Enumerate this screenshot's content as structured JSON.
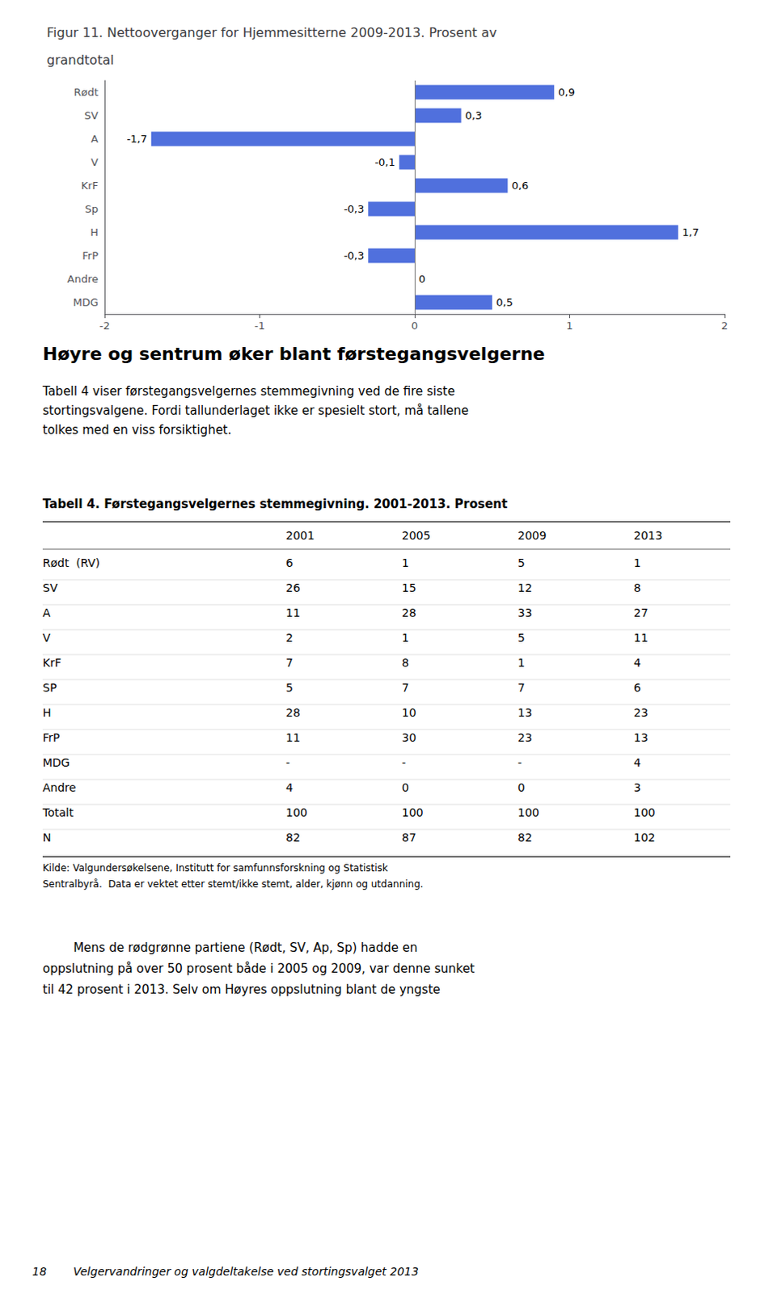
{
  "chart_data": {
    "type": "bar",
    "orientation": "horizontal",
    "title": "Figur 11. Nettooverganger for Hjemmesitterne 2009-2013. Prosent av\ngrandtotal",
    "categories": [
      "Rødt",
      "SV",
      "A",
      "V",
      "KrF",
      "Sp",
      "H",
      "FrP",
      "Andre",
      "MDG"
    ],
    "values": [
      0.9,
      0.3,
      -1.7,
      -0.1,
      0.6,
      -0.3,
      1.7,
      -0.3,
      0.0,
      0.5
    ],
    "value_labels": [
      "0,9",
      "0,3",
      "-1,7",
      "-0,1",
      "0,6",
      "-0,3",
      "1,7",
      "-0,3",
      "0",
      "0,5"
    ],
    "data_labels": true,
    "xlim": [
      -2,
      2
    ],
    "xticks": [
      -2,
      -1,
      0,
      1,
      2
    ],
    "grid": false,
    "annotations": [
      "Høyre og sentrum øker blant førstegangsvelgerne",
      "Tabell 4 viser førstegangsvelgernes stemmegivning ved de fire siste",
      "stortingsvalgene. Fordi tallunderlaget ikke er spesielt stort, må tallene",
      "tolkes med en viss forsiktighet.",
      "        Mens de rødgrønne partiene (Rødt, SV, Ap, Sp) hadde en",
      "oppslutning på over 50 prosent både i 2005 og 2009, var denne sunket",
      "til 42 prosent i 2013. Selv om Høyres oppslutning blant de yngste",
      "18",
      "Velgervandringer og valgdeltakelse ved stortingsvalget 2013"
    ],
    "table": {
      "title": "Tabell 4. Førstegangsvelgernes stemmegivning. 2001-2013. Prosent",
      "headers": [
        null,
        "2001",
        "2005",
        "2009",
        "2013"
      ],
      "rows": [
        [
          "Rødt  (RV)",
          "6",
          "1",
          "5",
          "1"
        ],
        [
          "SV",
          "26",
          "15",
          "12",
          "8"
        ],
        [
          "A",
          "11",
          "28",
          "33",
          "27"
        ],
        [
          "V",
          "2",
          "1",
          "5",
          "11"
        ],
        [
          "KrF",
          "7",
          "8",
          "1",
          "4"
        ],
        [
          "SP",
          "5",
          "7",
          "7",
          "6"
        ],
        [
          "H",
          "28",
          "10",
          "13",
          "23"
        ],
        [
          "FrP",
          "11",
          "30",
          "23",
          "13"
        ],
        [
          "MDG",
          "-",
          "-",
          "-",
          "4"
        ],
        [
          "Andre",
          "4",
          "0",
          "0",
          "3"
        ],
        [
          "Totalt",
          "100",
          "100",
          "100",
          "100"
        ],
        [
          "N",
          "82",
          "87",
          "82",
          "102"
        ]
      ],
      "note": [
        "Kilde: Valgundersøkelsene, Institutt for samfunnsforskning og Statistisk",
        "Sentralbyrå.  Data er vektet etter stemt/ikke stemt, alder, kjønn og utdanning."
      ]
    }
  }
}
